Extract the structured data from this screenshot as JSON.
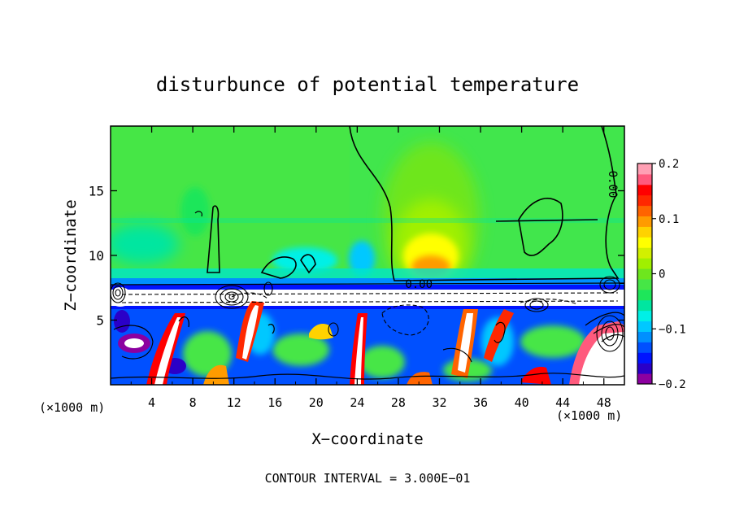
{
  "chart_data": {
    "type": "heatmap",
    "title": "disturbunce of potential temperature",
    "xlabel": "X−coordinate",
    "ylabel": "Z−coordinate",
    "x_unit_left": "(×1000 m)",
    "x_unit_right": "(×1000 m)",
    "footer": "CONTOUR INTERVAL = 3.000E−01",
    "xlim": [
      0,
      50
    ],
    "ylim": [
      0,
      20
    ],
    "x_ticks": [
      4,
      8,
      12,
      16,
      20,
      24,
      28,
      32,
      36,
      40,
      44,
      48
    ],
    "y_ticks": [
      5,
      10,
      15
    ],
    "contour_labels": [
      {
        "text": "0.00",
        "x": 30,
        "y": 7.5
      },
      {
        "text": "0.00",
        "x": 48.5,
        "y": 15.5
      }
    ],
    "colorbar": {
      "min": -0.2,
      "max": 0.2,
      "ticks": [
        0.2,
        0.1,
        0,
        -0.1,
        -0.2
      ],
      "tick_labels": [
        "0.2",
        "0.1",
        "0",
        "−0.1",
        "−0.2"
      ],
      "colors": [
        "#8c00a0",
        "#2a00c8",
        "#0014ff",
        "#0050ff",
        "#0090ff",
        "#00c8ff",
        "#00f0e6",
        "#00e6a0",
        "#1ee65a",
        "#46e646",
        "#6ee61e",
        "#a0f000",
        "#d2f000",
        "#ffff00",
        "#ffd200",
        "#ff9b00",
        "#ff6400",
        "#ff2800",
        "#ff0000",
        "#ff5a7d",
        "#ffa0b4"
      ]
    }
  }
}
